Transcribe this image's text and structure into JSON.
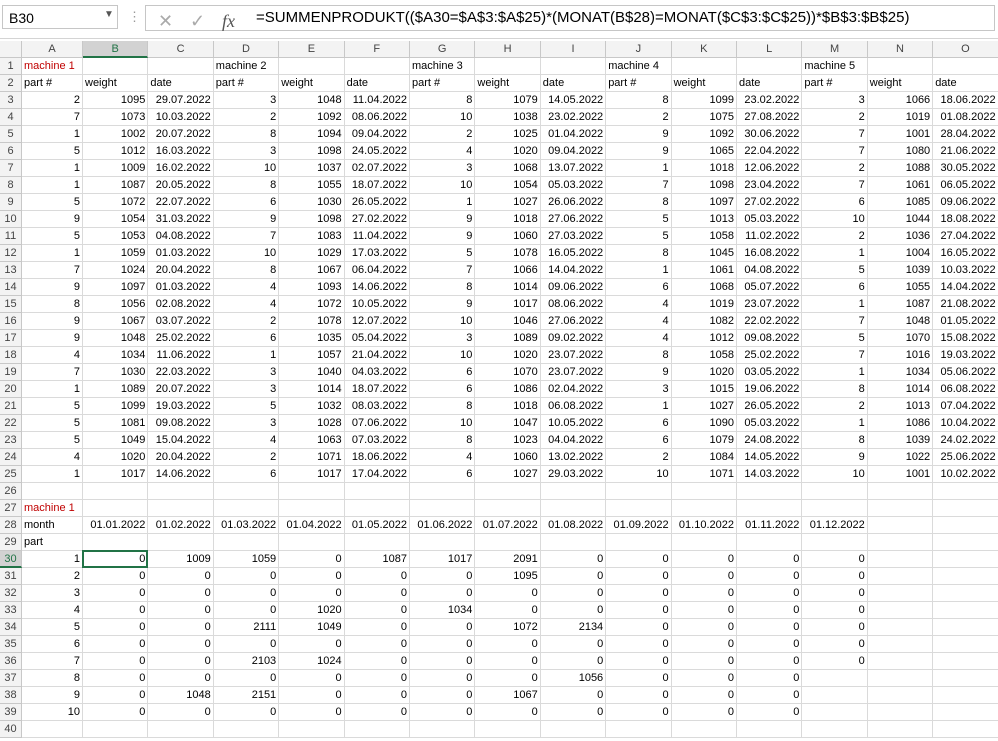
{
  "toolbar": {
    "name_box": "B30",
    "formula": "=SUMMENPRODUKT(($A30=$A$3:$A$25)*(MONAT(B$28)=MONAT($C$3:$C$25))*$B$3:$B$25)"
  },
  "sheet": {
    "columns": [
      "A",
      "B",
      "C",
      "D",
      "E",
      "F",
      "G",
      "H",
      "I",
      "J",
      "K",
      "L",
      "M",
      "N",
      "O"
    ],
    "row_headers": [
      1,
      2,
      3,
      4,
      5,
      6,
      7,
      8,
      9,
      10,
      11,
      12,
      13,
      14,
      15,
      16,
      17,
      18,
      19,
      20,
      21,
      22,
      23,
      24,
      25,
      26,
      27,
      28,
      29,
      30,
      31,
      32,
      33,
      34,
      35,
      36,
      37,
      38,
      39,
      40
    ],
    "rows": [
      [
        "machine 1",
        null,
        null,
        "machine 2",
        null,
        null,
        "machine 3",
        null,
        null,
        "machine 4",
        null,
        null,
        "machine 5",
        null,
        null
      ],
      [
        "part #",
        "weight",
        "date",
        "part #",
        "weight",
        "date",
        "part #",
        "weight",
        "date",
        "part #",
        "weight",
        "date",
        "part #",
        "weight",
        "date"
      ],
      [
        2,
        1095,
        "29.07.2022",
        3,
        1048,
        "11.04.2022",
        8,
        1079,
        "14.05.2022",
        8,
        1099,
        "23.02.2022",
        3,
        1066,
        "18.06.2022"
      ],
      [
        7,
        1073,
        "10.03.2022",
        2,
        1092,
        "08.06.2022",
        10,
        1038,
        "23.02.2022",
        2,
        1075,
        "27.08.2022",
        2,
        1019,
        "01.08.2022"
      ],
      [
        1,
        1002,
        "20.07.2022",
        8,
        1094,
        "09.04.2022",
        2,
        1025,
        "01.04.2022",
        9,
        1092,
        "30.06.2022",
        7,
        1001,
        "28.04.2022"
      ],
      [
        5,
        1012,
        "16.03.2022",
        3,
        1098,
        "24.05.2022",
        4,
        1020,
        "09.04.2022",
        9,
        1065,
        "22.04.2022",
        7,
        1080,
        "21.06.2022"
      ],
      [
        1,
        1009,
        "16.02.2022",
        10,
        1037,
        "02.07.2022",
        3,
        1068,
        "13.07.2022",
        1,
        1018,
        "12.06.2022",
        2,
        1088,
        "30.05.2022"
      ],
      [
        1,
        1087,
        "20.05.2022",
        8,
        1055,
        "18.07.2022",
        10,
        1054,
        "05.03.2022",
        7,
        1098,
        "23.04.2022",
        7,
        1061,
        "06.05.2022"
      ],
      [
        5,
        1072,
        "22.07.2022",
        6,
        1030,
        "26.05.2022",
        1,
        1027,
        "26.06.2022",
        8,
        1097,
        "27.02.2022",
        6,
        1085,
        "09.06.2022"
      ],
      [
        9,
        1054,
        "31.03.2022",
        9,
        1098,
        "27.02.2022",
        9,
        1018,
        "27.06.2022",
        5,
        1013,
        "05.03.2022",
        10,
        1044,
        "18.08.2022"
      ],
      [
        5,
        1053,
        "04.08.2022",
        7,
        1083,
        "11.04.2022",
        9,
        1060,
        "27.03.2022",
        5,
        1058,
        "11.02.2022",
        2,
        1036,
        "27.04.2022"
      ],
      [
        1,
        1059,
        "01.03.2022",
        10,
        1029,
        "17.03.2022",
        5,
        1078,
        "16.05.2022",
        8,
        1045,
        "16.08.2022",
        1,
        1004,
        "16.05.2022"
      ],
      [
        7,
        1024,
        "20.04.2022",
        8,
        1067,
        "06.04.2022",
        7,
        1066,
        "14.04.2022",
        1,
        1061,
        "04.08.2022",
        5,
        1039,
        "10.03.2022"
      ],
      [
        9,
        1097,
        "01.03.2022",
        4,
        1093,
        "14.06.2022",
        8,
        1014,
        "09.06.2022",
        6,
        1068,
        "05.07.2022",
        6,
        1055,
        "14.04.2022"
      ],
      [
        8,
        1056,
        "02.08.2022",
        4,
        1072,
        "10.05.2022",
        9,
        1017,
        "08.06.2022",
        4,
        1019,
        "23.07.2022",
        1,
        1087,
        "21.08.2022"
      ],
      [
        9,
        1067,
        "03.07.2022",
        2,
        1078,
        "12.07.2022",
        10,
        1046,
        "27.06.2022",
        4,
        1082,
        "22.02.2022",
        7,
        1048,
        "01.05.2022"
      ],
      [
        9,
        1048,
        "25.02.2022",
        6,
        1035,
        "05.04.2022",
        3,
        1089,
        "09.02.2022",
        4,
        1012,
        "09.08.2022",
        5,
        1070,
        "15.08.2022"
      ],
      [
        4,
        1034,
        "11.06.2022",
        1,
        1057,
        "21.04.2022",
        10,
        1020,
        "23.07.2022",
        8,
        1058,
        "25.02.2022",
        7,
        1016,
        "19.03.2022"
      ],
      [
        7,
        1030,
        "22.03.2022",
        3,
        1040,
        "04.03.2022",
        6,
        1070,
        "23.07.2022",
        9,
        1020,
        "03.05.2022",
        1,
        1034,
        "05.06.2022"
      ],
      [
        1,
        1089,
        "20.07.2022",
        3,
        1014,
        "18.07.2022",
        6,
        1086,
        "02.04.2022",
        3,
        1015,
        "19.06.2022",
        8,
        1014,
        "06.08.2022"
      ],
      [
        5,
        1099,
        "19.03.2022",
        5,
        1032,
        "08.03.2022",
        8,
        1018,
        "06.08.2022",
        1,
        1027,
        "26.05.2022",
        2,
        1013,
        "07.04.2022"
      ],
      [
        5,
        1081,
        "09.08.2022",
        3,
        1028,
        "07.06.2022",
        10,
        1047,
        "10.05.2022",
        6,
        1090,
        "05.03.2022",
        1,
        1086,
        "10.04.2022"
      ],
      [
        5,
        1049,
        "15.04.2022",
        4,
        1063,
        "07.03.2022",
        8,
        1023,
        "04.04.2022",
        6,
        1079,
        "24.08.2022",
        8,
        1039,
        "24.02.2022"
      ],
      [
        4,
        1020,
        "20.04.2022",
        2,
        1071,
        "18.06.2022",
        4,
        1060,
        "13.02.2022",
        2,
        1084,
        "14.05.2022",
        9,
        1022,
        "25.06.2022"
      ],
      [
        1,
        1017,
        "14.06.2022",
        6,
        1017,
        "17.04.2022",
        6,
        1027,
        "29.03.2022",
        10,
        1071,
        "14.03.2022",
        10,
        1001,
        "10.02.2022"
      ],
      [
        null,
        null,
        null,
        null,
        null,
        null,
        null,
        null,
        null,
        null,
        null,
        null,
        null,
        null,
        null
      ],
      [
        "machine 1",
        null,
        null,
        null,
        null,
        null,
        null,
        null,
        null,
        null,
        null,
        null,
        null,
        null,
        null
      ],
      [
        "month",
        "01.01.2022",
        "01.02.2022",
        "01.03.2022",
        "01.04.2022",
        "01.05.2022",
        "01.06.2022",
        "01.07.2022",
        "01.08.2022",
        "01.09.2022",
        "01.10.2022",
        "01.11.2022",
        "01.12.2022",
        null,
        null
      ],
      [
        "part",
        null,
        null,
        null,
        null,
        null,
        null,
        null,
        null,
        null,
        null,
        null,
        null,
        null,
        null
      ],
      [
        1,
        0,
        1009,
        1059,
        0,
        1087,
        1017,
        2091,
        0,
        0,
        0,
        0,
        0,
        null,
        null
      ],
      [
        2,
        0,
        0,
        0,
        0,
        0,
        0,
        1095,
        0,
        0,
        0,
        0,
        0,
        null,
        null
      ],
      [
        3,
        0,
        0,
        0,
        0,
        0,
        0,
        0,
        0,
        0,
        0,
        0,
        0,
        null,
        null
      ],
      [
        4,
        0,
        0,
        0,
        1020,
        0,
        1034,
        0,
        0,
        0,
        0,
        0,
        0,
        null,
        null
      ],
      [
        5,
        0,
        0,
        2111,
        1049,
        0,
        0,
        1072,
        2134,
        0,
        0,
        0,
        0,
        null,
        null
      ],
      [
        6,
        0,
        0,
        0,
        0,
        0,
        0,
        0,
        0,
        0,
        0,
        0,
        0,
        null,
        null
      ],
      [
        7,
        0,
        0,
        2103,
        1024,
        0,
        0,
        0,
        0,
        0,
        0,
        0,
        0,
        null,
        null
      ],
      [
        8,
        0,
        0,
        0,
        0,
        0,
        0,
        0,
        1056,
        0,
        0,
        0,
        null,
        null,
        null
      ],
      [
        9,
        0,
        1048,
        2151,
        0,
        0,
        0,
        1067,
        0,
        0,
        0,
        0,
        null,
        null,
        null
      ],
      [
        10,
        0,
        0,
        0,
        0,
        0,
        0,
        0,
        0,
        0,
        0,
        0,
        null,
        null,
        null
      ],
      [
        null,
        null,
        null,
        null,
        null,
        null,
        null,
        null,
        null,
        null,
        null,
        null,
        null,
        null,
        null
      ]
    ]
  }
}
